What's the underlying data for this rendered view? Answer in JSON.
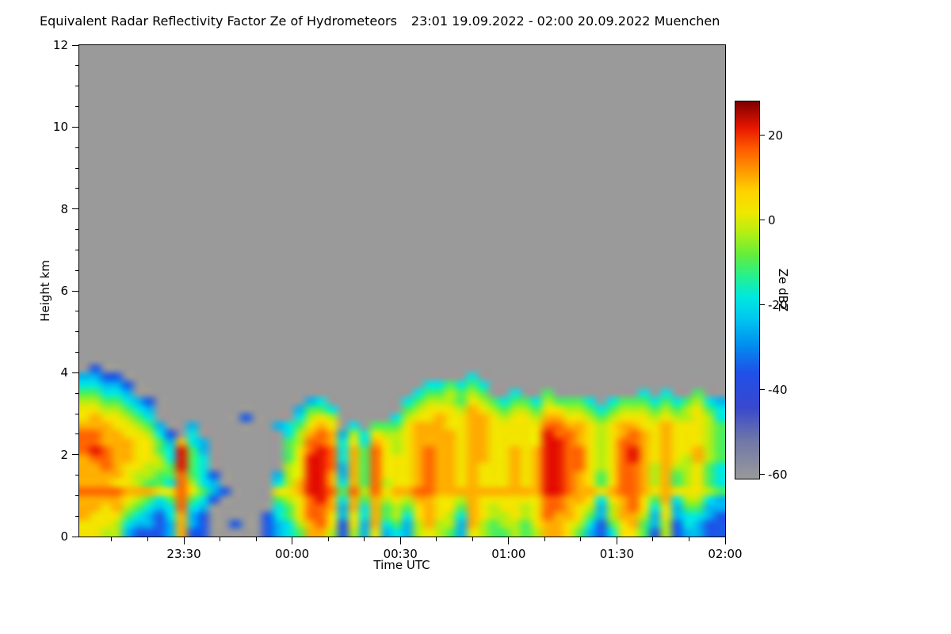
{
  "title": {
    "main": "Equivalent Radar Reflectivity Factor Ze of Hydrometeors",
    "daterange": "23:01 19.09.2022 - 02:00 20.09.2022 Muenchen"
  },
  "axes": {
    "ylabel": "Height km",
    "xlabel": "Time UTC",
    "yticks": [
      0,
      2,
      4,
      6,
      8,
      10,
      12
    ],
    "xticks": [
      "23:30",
      "00:00",
      "00:30",
      "01:00",
      "01:30",
      "02:00"
    ],
    "xtick_minutes": [
      -30,
      0,
      30,
      60,
      90,
      120
    ]
  },
  "colorbar": {
    "label": "Ze dBZ",
    "ticks": [
      20,
      0,
      -20,
      -40,
      -60
    ],
    "vmin": -61,
    "vmax": 28,
    "no_echo_color": "#9a9a9a",
    "stops": [
      [
        -61,
        "#9a9a9a"
      ],
      [
        -52,
        "#7078a8"
      ],
      [
        -44,
        "#3948cf"
      ],
      [
        -36,
        "#2050e8"
      ],
      [
        -29,
        "#0092f0"
      ],
      [
        -23,
        "#00c8f0"
      ],
      [
        -18,
        "#00e8e0"
      ],
      [
        -13,
        "#28f08c"
      ],
      [
        -8,
        "#64ee3c"
      ],
      [
        -3,
        "#b4ee14"
      ],
      [
        2,
        "#f0e800"
      ],
      [
        7,
        "#ffd200"
      ],
      [
        12,
        "#ff9600"
      ],
      [
        17,
        "#ff5a00"
      ],
      [
        22,
        "#e61600"
      ],
      [
        28,
        "#7f0000"
      ]
    ]
  },
  "chart_data": {
    "type": "heatmap",
    "quantity": "Equivalent Radar Reflectivity Factor Ze of Hydrometeors",
    "units": "dBZ",
    "location": "Muenchen",
    "time_start": "23:01 19.09.2022",
    "time_end": "02:00 20.09.2022",
    "xlabel": "Time UTC",
    "ylabel": "Height km",
    "x_ticks": [
      "23:30",
      "00:00",
      "00:30",
      "01:00",
      "01:30",
      "02:00"
    ],
    "y_range_km": [
      0,
      12
    ],
    "color_scale_range_dbz": [
      -61,
      28
    ],
    "color_scale_ticks": [
      20,
      0,
      -20,
      -40,
      -60
    ],
    "no_echo": "uniform gray where reflectivity below scale minimum; echoes confined below ~4 km",
    "grid": {
      "description": "Coarse reconstruction of the radar echo field. Rows top_to_bottom, 0.2 km bins from 4.4 km down to 0 km. Columns left_to_right, 3 minute bins starting 23:01.",
      "time_start_minutes_rel_0000": -59,
      "time_bin_minutes": 3,
      "n_time_bins": 60,
      "height_bin_km": 0.2,
      "n_height_bins": 22,
      "height_top_km": 4.4,
      "row_order": "top_to_bottom",
      "no_echo_char": ".",
      "char_to_dbz": {
        "3": -35,
        "4": -25,
        "5": -18,
        "6": -10,
        "7": -3,
        "8": 3,
        "9": 10,
        "A": 16,
        "B": 22
      },
      "rows": [
        "............................................................",
        ".3..........................................................",
        "4433................................5.......................",
        "55443...........................556565......................",
        "66554..........................5667676..5..6........5.5..6..",
        "7766543..............45.......567776876566576665.56665656754",
        "8877654.............4665......678887987677688776567776767865",
        "8988765........3....5787.....5788988998788799887678887877875",
        "99988764..4.......456898.5.6668999889988888AA998789988988876",
        "AA9988753.5........579A94758778999989988888BAA98789A98988876",
        "AA9998864954.......67AA95859878999989988888BBA9878AA98988876",
        "ABA998865B64.......68ABA596A8789A9989988989BBAA878AB98988976",
        "9AA998875B65.......68BBA596A8889A9989988989BBAA878AB98987976",
        "99A988776B65.......78BBA496A8889A9989888989BBAA878AA97977865",
        "999987766A653.....478BB9496A8889A9989888989BBA9868AA97967865",
        "999887665A754.....579BB9596A7889A9989888989BBA9868AA97967865",
        "AAAA99988A8643....889BBA6A7A899AA9999999999BBA9989AA98988876",
        "999987656A653.....678AB95969787998879888888AA998589A86957754",
        "998976545A54......568AA94959676898869878878AA987479A85846644",
        "988865435943.....3568AA84859675898759877878A9986479974845543",
        "888754434943..3..34579A8384956479774976776899875368964735433",
        "887743334933.....3456997374845478764876676799864358863734433"
      ]
    }
  }
}
